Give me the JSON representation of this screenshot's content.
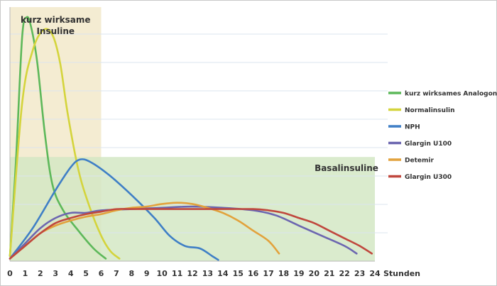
{
  "chart_data": {
    "type": "line",
    "x_unit_label": "Stunden",
    "x_ticks": [
      0,
      1,
      2,
      3,
      4,
      5,
      6,
      7,
      8,
      9,
      10,
      11,
      12,
      13,
      14,
      15,
      16,
      17,
      18,
      19,
      20,
      21,
      22,
      23,
      24
    ],
    "xlim": [
      0,
      24
    ],
    "ylim": [
      0,
      100
    ],
    "grid": true,
    "legend_position": "right",
    "regions": [
      {
        "label": "kurz wirksame Insuline",
        "lines": [
          "kurz wirksame",
          "Insuline"
        ],
        "x_range": [
          0,
          6
        ],
        "y_range": [
          0,
          100
        ],
        "color": "#f4ecd2"
      },
      {
        "label": "Basalinsuline",
        "x_range": [
          0,
          24
        ],
        "y_range": [
          0,
          41
        ],
        "color": "#d3e8c4"
      }
    ],
    "series": [
      {
        "name": "kurz wirksames Analogon",
        "color": "#5db85a",
        "points": [
          [
            0,
            2
          ],
          [
            0.4,
            40
          ],
          [
            0.8,
            88
          ],
          [
            1.1,
            96
          ],
          [
            1.4,
            92
          ],
          [
            1.8,
            78
          ],
          [
            2.3,
            50
          ],
          [
            2.8,
            30
          ],
          [
            3.5,
            20
          ],
          [
            4.5,
            12
          ],
          [
            5.5,
            5
          ],
          [
            6.3,
            1
          ]
        ]
      },
      {
        "name": "Normalinsulin",
        "color": "#d4d43c",
        "points": [
          [
            0,
            2
          ],
          [
            0.8,
            62
          ],
          [
            1.5,
            83
          ],
          [
            2.2,
            91
          ],
          [
            2.8,
            89
          ],
          [
            3.3,
            78
          ],
          [
            3.8,
            58
          ],
          [
            4.5,
            36
          ],
          [
            5.2,
            22
          ],
          [
            6,
            10
          ],
          [
            6.6,
            4
          ],
          [
            7.2,
            1
          ]
        ]
      },
      {
        "name": "NPH",
        "color": "#3f7fc6",
        "points": [
          [
            0,
            1
          ],
          [
            1.5,
            13
          ],
          [
            3,
            28
          ],
          [
            4,
            37
          ],
          [
            4.6,
            40
          ],
          [
            5.3,
            39
          ],
          [
            6.5,
            34
          ],
          [
            8,
            26
          ],
          [
            9.5,
            17
          ],
          [
            10.5,
            10
          ],
          [
            11.5,
            6
          ],
          [
            12.5,
            5
          ],
          [
            13.3,
            2
          ],
          [
            13.7,
            0.5
          ]
        ]
      },
      {
        "name": "Glargin U100",
        "color": "#6c66b0",
        "points": [
          [
            0,
            1
          ],
          [
            1,
            7
          ],
          [
            2,
            13
          ],
          [
            3,
            17
          ],
          [
            4,
            19
          ],
          [
            5,
            19
          ],
          [
            6,
            20
          ],
          [
            8,
            20.5
          ],
          [
            10,
            21
          ],
          [
            12,
            21.5
          ],
          [
            14,
            21
          ],
          [
            16,
            20
          ],
          [
            17.5,
            18
          ],
          [
            19,
            14
          ],
          [
            20.5,
            10
          ],
          [
            22,
            6
          ],
          [
            22.8,
            3
          ]
        ]
      },
      {
        "name": "Detemir",
        "color": "#e2a23c",
        "points": [
          [
            0,
            1
          ],
          [
            1,
            6
          ],
          [
            2,
            11
          ],
          [
            3,
            14
          ],
          [
            4,
            16
          ],
          [
            5,
            17.5
          ],
          [
            6,
            18.5
          ],
          [
            7,
            20
          ],
          [
            8,
            21
          ],
          [
            9,
            21.5
          ],
          [
            10,
            22.5
          ],
          [
            11,
            23
          ],
          [
            12,
            22.5
          ],
          [
            13,
            21
          ],
          [
            14,
            19
          ],
          [
            15,
            16
          ],
          [
            16,
            12
          ],
          [
            17,
            8
          ],
          [
            17.7,
            3
          ]
        ]
      },
      {
        "name": "Glargin U300",
        "color": "#c0473d",
        "points": [
          [
            0,
            1
          ],
          [
            1,
            6
          ],
          [
            2,
            11
          ],
          [
            3,
            15
          ],
          [
            4,
            17
          ],
          [
            5,
            18.5
          ],
          [
            6,
            19.5
          ],
          [
            7,
            20.5
          ],
          [
            8,
            20.5
          ],
          [
            10,
            20.5
          ],
          [
            12,
            20.5
          ],
          [
            14,
            20.5
          ],
          [
            16,
            20.5
          ],
          [
            17,
            20
          ],
          [
            18,
            19
          ],
          [
            19,
            17
          ],
          [
            20,
            15
          ],
          [
            21,
            12
          ],
          [
            22,
            9
          ],
          [
            23,
            6
          ],
          [
            23.8,
            3
          ]
        ]
      }
    ]
  }
}
